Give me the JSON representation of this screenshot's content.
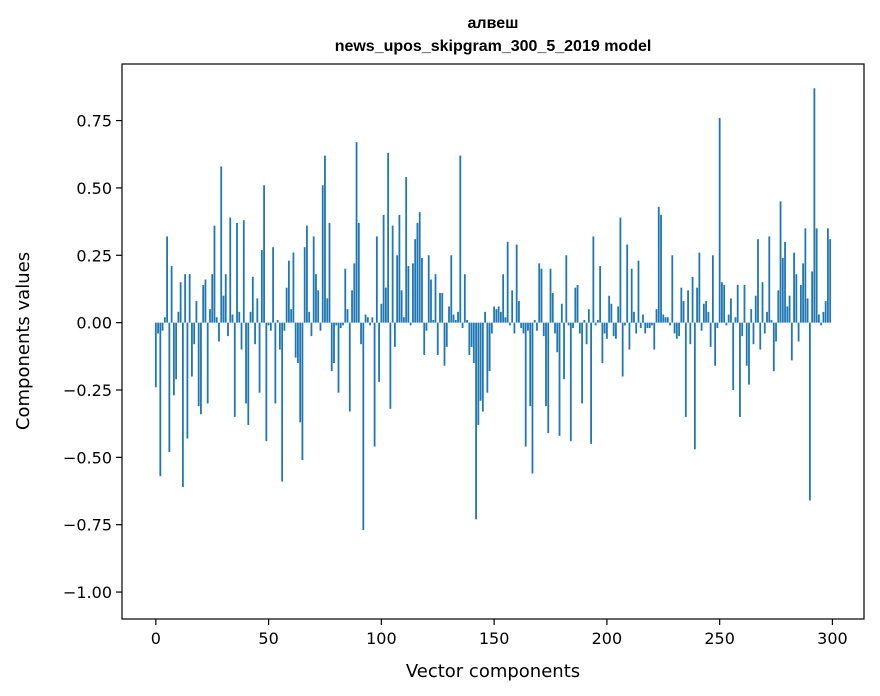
{
  "chart_data": {
    "type": "bar",
    "title": "алвеш",
    "subtitle": "news_upos_skipgram_300_5_2019 model",
    "xlabel": "Vector components",
    "ylabel": "Components values",
    "xlim": [
      -15,
      314
    ],
    "ylim": [
      -1.1,
      0.96
    ],
    "xticks": [
      0,
      50,
      100,
      150,
      200,
      250,
      300
    ],
    "yticks": [
      -1.0,
      -0.75,
      -0.5,
      -0.25,
      0.0,
      0.25,
      0.5,
      0.75
    ],
    "ytick_labels": [
      "−1.00",
      "−0.75",
      "−0.50",
      "−0.25",
      "0.00",
      "0.25",
      "0.50",
      "0.75"
    ],
    "color": "#1f77b4",
    "grid": false,
    "values": [
      -0.24,
      -0.04,
      -0.57,
      -0.03,
      0.02,
      0.32,
      -0.48,
      0.21,
      -0.27,
      -0.21,
      0.04,
      0.15,
      -0.61,
      0.18,
      -0.43,
      0.18,
      -0.2,
      -0.08,
      0.08,
      -0.31,
      -0.34,
      0.14,
      0.16,
      -0.3,
      0.05,
      0.18,
      0.36,
      0.02,
      -0.07,
      0.58,
      0.1,
      0.18,
      -0.05,
      0.39,
      0.03,
      -0.35,
      0.37,
      0.04,
      -0.1,
      0.38,
      -0.3,
      -0.38,
      0.04,
      0.17,
      -0.08,
      0.09,
      -0.26,
      0.27,
      0.51,
      -0.44,
      -0.01,
      -0.03,
      0.28,
      -0.3,
      0.01,
      -0.1,
      -0.59,
      -0.03,
      0.13,
      0.23,
      0.05,
      0.26,
      -0.13,
      -0.15,
      -0.37,
      -0.51,
      0.28,
      0.36,
      0.04,
      -0.05,
      0.32,
      0.18,
      0.12,
      -0.03,
      0.51,
      0.62,
      0.09,
      0.37,
      -0.18,
      -0.15,
      -0.01,
      -0.26,
      -0.02,
      -0.01,
      0.2,
      0.05,
      -0.33,
      0.12,
      0.22,
      0.67,
      0.37,
      -0.08,
      -0.77,
      0.03,
      0.02,
      -0.01,
      0.02,
      -0.46,
      0.32,
      -0.22,
      0.07,
      0.4,
      0.13,
      0.63,
      -0.32,
      0.36,
      -0.09,
      0.25,
      0.4,
      0.12,
      0.02,
      0.54,
      0.21,
      -0.01,
      0.22,
      0.31,
      0.37,
      0.41,
      0.24,
      -0.12,
      -0.03,
      0.25,
      0.16,
      0.01,
      0.18,
      -0.12,
      0.11,
      0.11,
      -0.16,
      -0.09,
      0.06,
      0.25,
      0.03,
      0.01,
      0.04,
      0.62,
      -0.02,
      0.18,
      0.01,
      -0.12,
      -0.09,
      -0.15,
      -0.73,
      -0.38,
      -0.29,
      -0.33,
      0.04,
      -0.26,
      -0.18,
      -0.04,
      0.06,
      0.05,
      0.06,
      0.04,
      0.18,
      0.02,
      0.3,
      -0.01,
      0.12,
      -0.04,
      0.29,
      0.08,
      -0.02,
      -0.04,
      -0.46,
      -0.03,
      -0.31,
      -0.56,
      0.01,
      -0.03,
      0.22,
      0.2,
      -0.05,
      -0.31,
      -0.41,
      0.2,
      0.11,
      -0.04,
      -0.11,
      -0.42,
      0.07,
      -0.21,
      0.25,
      -0.01,
      -0.44,
      -0.02,
      0.13,
      0.14,
      -0.04,
      -0.3,
      0.01,
      -0.08,
      0.05,
      -0.45,
      0.32,
      -0.01,
      0.01,
      0.21,
      -0.15,
      -0.04,
      -0.06,
      0.1,
      0.07,
      -0.05,
      -0.06,
      0.06,
      0.39,
      -0.2,
      -0.01,
      0.29,
      -0.1,
      0.2,
      0.04,
      -0.04,
      0.23,
      -0.02,
      0.03,
      -0.04,
      -0.02,
      -0.02,
      -0.01,
      -0.1,
      0.05,
      0.43,
      0.4,
      0.03,
      0.02,
      0.02,
      -0.01,
      0.25,
      -0.04,
      -0.06,
      -0.05,
      0.13,
      0.08,
      -0.35,
      0.12,
      -0.08,
      0.17,
      -0.47,
      0.13,
      0.26,
      -0.03,
      0.07,
      0.08,
      0.04,
      -0.09,
      0.25,
      -0.16,
      -0.02,
      0.76,
      0.15,
      0.14,
      -0.01,
      0.03,
      0.09,
      -0.25,
      0.02,
      0.14,
      -0.35,
      -0.05,
      0.14,
      -0.16,
      -0.23,
      0.05,
      -0.08,
      0.1,
      0.31,
      -0.1,
      0.15,
      -0.04,
      0.04,
      0.32,
      0.01,
      -0.18,
      -0.07,
      0.12,
      0.45,
      0.24,
      0.3,
      0.06,
      0.1,
      -0.14,
      0.26,
      0.18,
      -0.07,
      0.14,
      0.22,
      0.35,
      0.09,
      -0.66,
      0.19,
      0.87,
      0.35,
      0.03,
      -0.01,
      0.04,
      0.08,
      0.35,
      0.31
    ]
  }
}
